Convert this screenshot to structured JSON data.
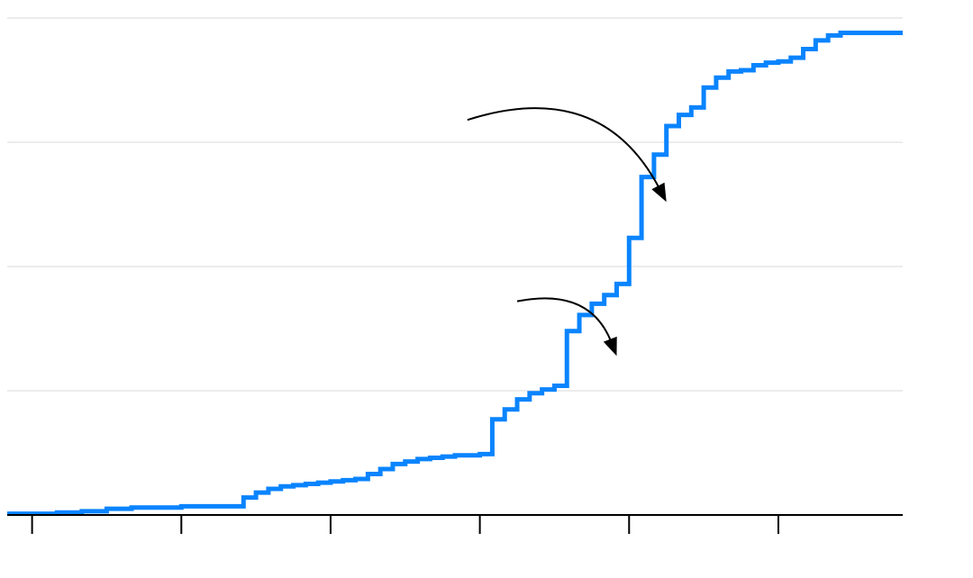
{
  "chart_data": {
    "type": "line",
    "step": true,
    "title": "",
    "xlabel": "",
    "ylabel": "",
    "xlim": [
      0,
      36
    ],
    "ylim": [
      0,
      400
    ],
    "x_ticks": [
      1,
      7,
      13,
      19,
      25,
      31
    ],
    "y_gridlines": [
      100,
      200,
      300,
      400
    ],
    "grid": true,
    "legend": "none",
    "colors": {
      "series": "#0a84ff",
      "grid": "#ececec",
      "axis": "#000000"
    },
    "series": [
      {
        "x": [
          0,
          1,
          2,
          3,
          4,
          5,
          6,
          7,
          8,
          9,
          9.5,
          10,
          10.5,
          11,
          11.5,
          12,
          12.5,
          13,
          13.5,
          14,
          14.5,
          15,
          15.5,
          16,
          16.5,
          17,
          17.5,
          18,
          18.5,
          19,
          19.5,
          20,
          20.5,
          21,
          21.5,
          22,
          22.5,
          23,
          23.5,
          24,
          24.5,
          25,
          25.5,
          26,
          26.5,
          27,
          27.5,
          28,
          28.5,
          29,
          29.5,
          30,
          30.5,
          31,
          31.5,
          32,
          32.5,
          33,
          33.5,
          34,
          34.5,
          35,
          35.5,
          36
        ],
        "y": [
          1,
          1,
          2,
          3,
          5,
          6,
          6,
          7,
          7,
          7,
          14,
          18,
          21,
          23,
          24,
          25,
          26,
          27,
          28,
          29,
          33,
          37,
          41,
          43,
          45,
          46,
          47,
          48,
          48,
          49,
          77,
          85,
          93,
          98,
          101,
          104,
          148,
          161,
          170,
          177,
          186,
          223,
          272,
          290,
          313,
          322,
          328,
          344,
          352,
          357,
          358,
          362,
          364,
          365,
          368,
          375,
          382,
          386,
          388,
          388,
          388,
          388,
          388,
          388
        ]
      }
    ],
    "annotations": [
      {
        "type": "arrow",
        "from": [
          20.5,
          172
        ],
        "to": [
          24.5,
          128
        ]
      },
      {
        "type": "arrow",
        "from": [
          18.5,
          318
        ],
        "to": [
          26.5,
          252
        ]
      }
    ]
  }
}
